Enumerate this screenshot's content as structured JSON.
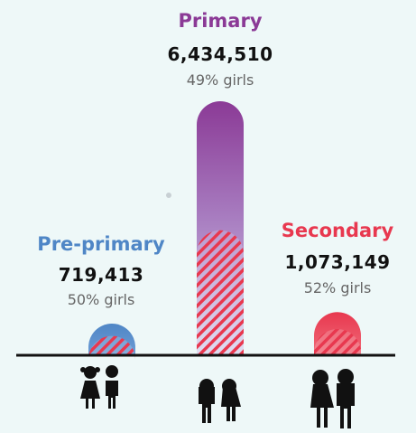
{
  "chart_data": {
    "type": "bar",
    "categories": [
      "Pre-primary",
      "Primary",
      "Secondary"
    ],
    "values": [
      719413,
      6434510,
      1073149
    ],
    "value_labels": [
      "719,413",
      "6,434,510",
      "1,073,149"
    ],
    "girls_share": [
      50,
      49,
      52
    ],
    "girls_labels": [
      "50% girls",
      "49% girls",
      "52% girls"
    ],
    "colors": [
      "#4f86c6",
      "#8b3a96",
      "#e8384f"
    ],
    "hatch_color": "#e8384f",
    "hatch_overlay_share": [
      1.0,
      0.49,
      1.0
    ],
    "title": "",
    "xlabel": "",
    "ylabel": "",
    "grid": false,
    "legend": "none",
    "icons": [
      "girl-and-boy-children-icon",
      "girl-and-boy-youth-icon",
      "woman-and-man-adults-icon"
    ]
  }
}
